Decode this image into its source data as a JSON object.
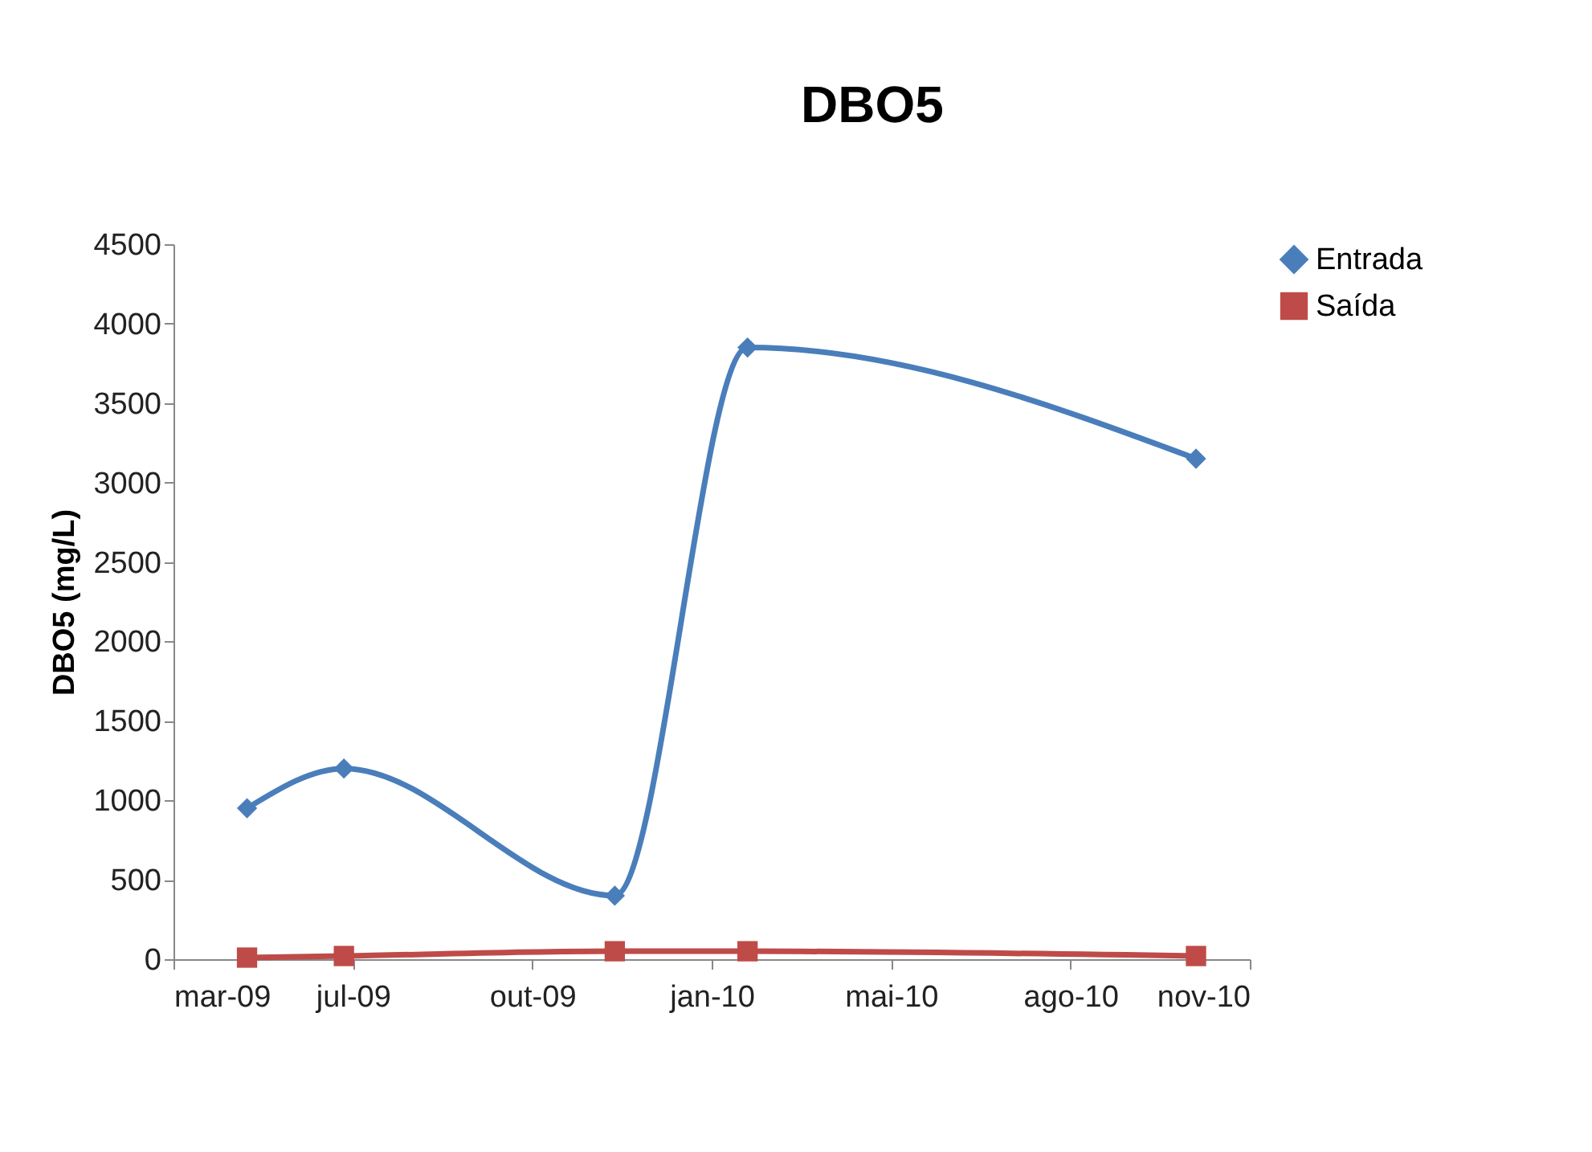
{
  "chart_data": {
    "type": "line",
    "title": "DBO5",
    "ylabel": "DBO5 (mg/L)",
    "xlim": [
      "2009-03-31",
      "2010-11-21"
    ],
    "xticks": [
      {
        "value": "2009-03-31",
        "label": "mar-09"
      },
      {
        "value": "2009-07-09",
        "label": "jul-09"
      },
      {
        "value": "2009-10-17",
        "label": "out-09"
      },
      {
        "value": "2010-01-25",
        "label": "jan-10"
      },
      {
        "value": "2010-05-05",
        "label": "mai-10"
      },
      {
        "value": "2010-08-13",
        "label": "ago-10"
      },
      {
        "value": "2010-11-21",
        "label": "nov-10"
      }
    ],
    "ylim": [
      0,
      4500
    ],
    "yticks": [
      0,
      500,
      1000,
      1500,
      2000,
      2500,
      3000,
      3500,
      4000,
      4500
    ],
    "grid": false,
    "legend": "right",
    "series": [
      {
        "name": "Entrada",
        "color": "#4a7ebb",
        "marker": "diamond",
        "x": [
          "2009-05-11",
          "2009-07-04",
          "2009-12-02",
          "2010-02-14",
          "2010-10-22"
        ],
        "values": [
          950,
          1200,
          400,
          3850,
          3150
        ]
      },
      {
        "name": "Saída",
        "color": "#be4b48",
        "marker": "square",
        "x": [
          "2009-05-11",
          "2009-07-04",
          "2009-12-02",
          "2010-02-14",
          "2010-10-22"
        ],
        "values": [
          10,
          20,
          50,
          50,
          20
        ]
      }
    ]
  }
}
